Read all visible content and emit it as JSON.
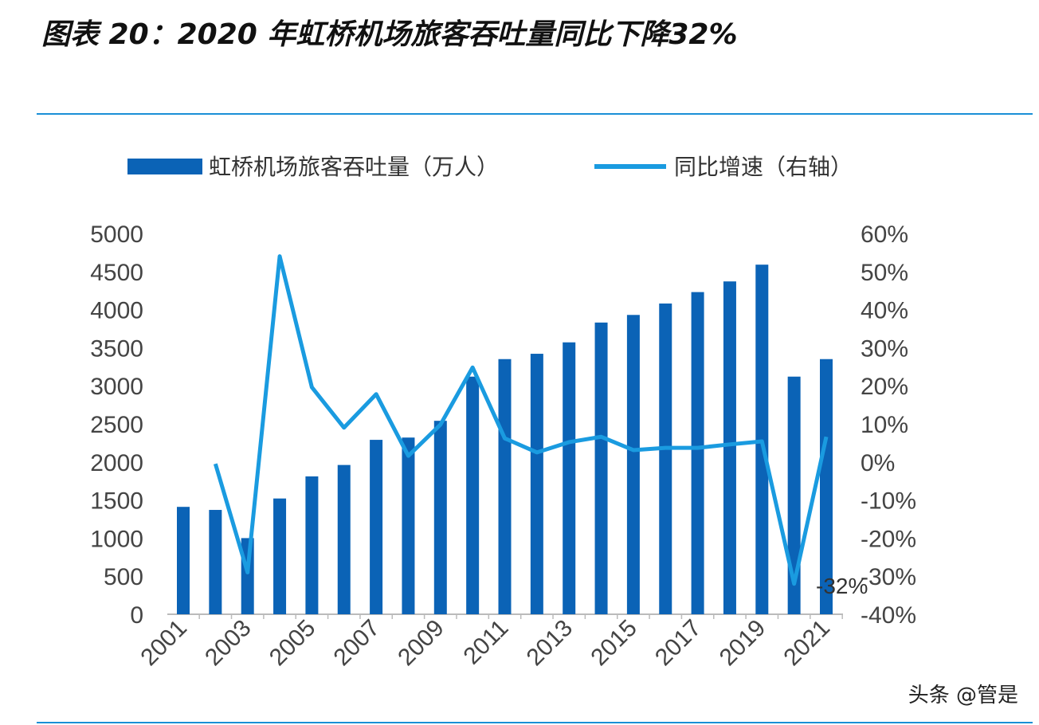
{
  "title": "图表 20：2020 年虹桥机场旅客吞吐量同比下降32%",
  "watermark": "头条 @管是",
  "chart_data": {
    "type": "bar+line",
    "categories": [
      "2001",
      "2002",
      "2003",
      "2004",
      "2005",
      "2006",
      "2007",
      "2008",
      "2009",
      "2010",
      "2011",
      "2012",
      "2013",
      "2014",
      "2015",
      "2016",
      "2017",
      "2018",
      "2019",
      "2020",
      "2021"
    ],
    "x_tick_labels": [
      "2001",
      "2003",
      "2005",
      "2007",
      "2009",
      "2011",
      "2013",
      "2015",
      "2017",
      "2019",
      "2021"
    ],
    "series": [
      {
        "name": "虹桥机场旅客吞吐量（万人）",
        "type": "bar",
        "axis": "left",
        "color": "#0b63b6",
        "values": [
          1410,
          1370,
          1000,
          1520,
          1810,
          1960,
          2290,
          2320,
          2540,
          3120,
          3350,
          3420,
          3570,
          3830,
          3930,
          4080,
          4230,
          4370,
          4590,
          3120,
          3350
        ]
      },
      {
        "name": "同比增速（右轴）",
        "type": "line",
        "axis": "right",
        "color": "#1a9be0",
        "values": [
          null,
          -0.5,
          -29,
          54,
          19.6,
          9,
          17.8,
          1.6,
          9.8,
          24.8,
          6.2,
          2.5,
          5.2,
          6.6,
          3.1,
          3.7,
          3.7,
          4.6,
          5.4,
          -32,
          6.6
        ]
      }
    ],
    "left_axis": {
      "min": 0,
      "max": 5000,
      "ticks": [
        "0",
        "500",
        "1000",
        "1500",
        "2000",
        "2500",
        "3000",
        "3500",
        "4000",
        "4500",
        "5000"
      ]
    },
    "right_axis": {
      "min": -40,
      "max": 60,
      "ticks": [
        "-40%",
        "-30%",
        "-20%",
        "-10%",
        "0%",
        "10%",
        "20%",
        "30%",
        "40%",
        "50%",
        "60%"
      ]
    },
    "annotations": [
      {
        "text": "-32%"
      }
    ],
    "legend": "top",
    "grid": false
  }
}
